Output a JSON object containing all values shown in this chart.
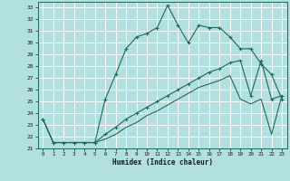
{
  "xlabel": "Humidex (Indice chaleur)",
  "bg_color": "#b2dfdf",
  "grid_color": "#ffffff",
  "line_color": "#1a6b5a",
  "xlim": [
    -0.5,
    23.5
  ],
  "ylim": [
    21,
    33.5
  ],
  "xticks": [
    0,
    1,
    2,
    3,
    4,
    5,
    6,
    7,
    8,
    9,
    10,
    11,
    12,
    13,
    14,
    15,
    16,
    17,
    18,
    19,
    20,
    21,
    22,
    23
  ],
  "yticks": [
    21,
    22,
    23,
    24,
    25,
    26,
    27,
    28,
    29,
    30,
    31,
    32,
    33
  ],
  "main_y": [
    23.5,
    21.5,
    21.5,
    21.5,
    21.5,
    21.5,
    25.2,
    27.3,
    29.5,
    30.5,
    30.8,
    31.3,
    33.2,
    31.5,
    30.0,
    31.5,
    31.3,
    31.3,
    30.5,
    29.5,
    29.5,
    28.2,
    27.3,
    25.2
  ],
  "line1_y": [
    23.5,
    21.5,
    21.5,
    21.5,
    21.5,
    21.5,
    22.2,
    22.8,
    23.5,
    24.0,
    24.5,
    25.0,
    25.5,
    26.0,
    26.5,
    27.0,
    27.5,
    27.8,
    28.3,
    28.5,
    25.5,
    28.5,
    25.2,
    25.5
  ],
  "line2_y": [
    23.5,
    21.5,
    21.5,
    21.5,
    21.5,
    21.5,
    21.8,
    22.2,
    22.8,
    23.2,
    23.8,
    24.2,
    24.7,
    25.2,
    25.7,
    26.2,
    26.5,
    26.8,
    27.2,
    25.2,
    24.8,
    25.2,
    22.2,
    25.5
  ]
}
